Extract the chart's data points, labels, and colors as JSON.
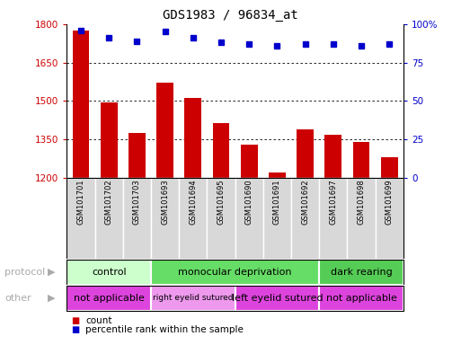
{
  "title": "GDS1983 / 96834_at",
  "samples": [
    "GSM101701",
    "GSM101702",
    "GSM101703",
    "GSM101693",
    "GSM101694",
    "GSM101695",
    "GSM101690",
    "GSM101691",
    "GSM101692",
    "GSM101697",
    "GSM101698",
    "GSM101699"
  ],
  "counts": [
    1775,
    1493,
    1375,
    1570,
    1510,
    1415,
    1328,
    1220,
    1390,
    1368,
    1338,
    1280
  ],
  "percentile_ranks": [
    96,
    91,
    89,
    95,
    91,
    88,
    87,
    86,
    87,
    87,
    86,
    87
  ],
  "ylim_left": [
    1200,
    1800
  ],
  "ylim_right": [
    0,
    100
  ],
  "yticks_left": [
    1200,
    1350,
    1500,
    1650,
    1800
  ],
  "yticks_right": [
    0,
    25,
    50,
    75,
    100
  ],
  "bar_color": "#cc0000",
  "dot_color": "#0000cc",
  "protocol_groups": [
    {
      "label": "control",
      "start": 0,
      "end": 3,
      "color": "#ccffcc"
    },
    {
      "label": "monocular deprivation",
      "start": 3,
      "end": 9,
      "color": "#66dd66"
    },
    {
      "label": "dark rearing",
      "start": 9,
      "end": 12,
      "color": "#55cc55"
    }
  ],
  "other_groups": [
    {
      "label": "not applicable",
      "start": 0,
      "end": 3,
      "color": "#dd44dd"
    },
    {
      "label": "right eyelid sutured",
      "start": 3,
      "end": 6,
      "color": "#ee99ee"
    },
    {
      "label": "left eyelid sutured",
      "start": 6,
      "end": 9,
      "color": "#dd44dd"
    },
    {
      "label": "not applicable",
      "start": 9,
      "end": 12,
      "color": "#dd44dd"
    }
  ],
  "legend_count_label": "count",
  "legend_pct_label": "percentile rank within the sample",
  "protocol_label": "protocol",
  "other_label": "other",
  "background_color": "#ffffff",
  "tick_label_color_left": "#cc0000",
  "tick_label_color_right": "#0000cc",
  "sample_box_color": "#d8d8d8",
  "arrow_color": "#aaaaaa"
}
